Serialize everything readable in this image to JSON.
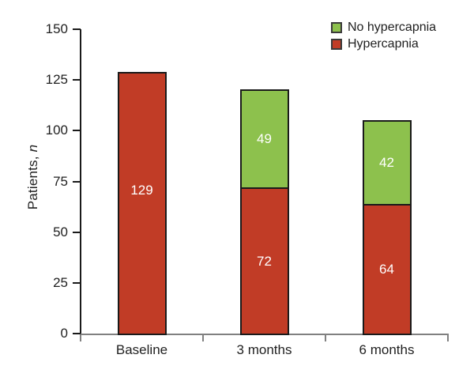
{
  "chart_data": {
    "type": "bar",
    "stacked": true,
    "title": "",
    "categories": [
      "Baseline",
      "3 months",
      "6 months"
    ],
    "series": [
      {
        "name": "Hypercapnia",
        "color": "#c13c26",
        "values": [
          129,
          72,
          64
        ]
      },
      {
        "name": "No hypercapnia",
        "color": "#8dc14d",
        "values": [
          0,
          49,
          42
        ]
      }
    ],
    "value_labels_shown": true,
    "ylabel_prefix": "Patients, ",
    "ylabel_italic": "n",
    "xlabel": "",
    "ylim": [
      0,
      150
    ],
    "yticks": [
      0,
      25,
      50,
      75,
      100,
      125,
      150
    ],
    "grid": false,
    "legend": {
      "position": "top-right",
      "entries": [
        {
          "label": "No hypercapnia",
          "color": "#8dc14d"
        },
        {
          "label": "Hypercapnia",
          "color": "#c13c26"
        }
      ]
    },
    "colors": {
      "bar_border": "#1a1a1a",
      "y_axis": "#1a1a1a",
      "x_axis": "#808080",
      "text": "#1f1f1f",
      "value_label": "#ffffff"
    }
  }
}
